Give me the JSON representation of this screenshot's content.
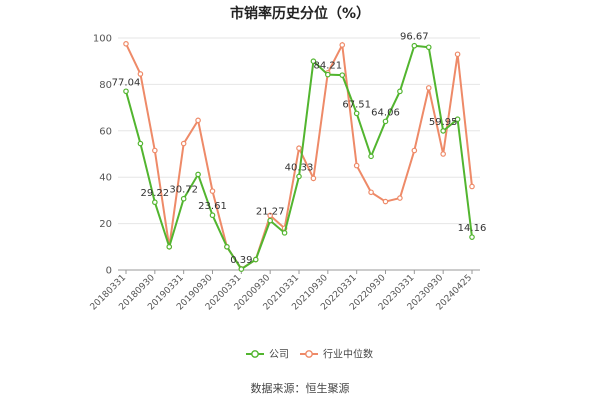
{
  "chart_data": {
    "type": "line",
    "title": "市销率历史分位（%）",
    "ylim": [
      0,
      100
    ],
    "yticks": [
      0,
      20,
      40,
      60,
      80,
      100
    ],
    "x_tick_labels": [
      "20180331",
      "20180930",
      "20190331",
      "20190930",
      "20200331",
      "20200930",
      "20210331",
      "20210930",
      "20220331",
      "20220930",
      "20230331",
      "20230930",
      "20240425"
    ],
    "grid": true,
    "legend_position": "bottom",
    "series": [
      {
        "name": "公司",
        "color": "#52b52f",
        "values": [
          77.04,
          54.5,
          29.22,
          10.0,
          30.72,
          41.2,
          23.61,
          10.0,
          0.39,
          4.5,
          21.27,
          16.0,
          40.33,
          90.0,
          84.21,
          84.0,
          67.51,
          49.0,
          64.06,
          77.0,
          96.67,
          96.0,
          59.95,
          65.0,
          14.16
        ],
        "labels": [
          "77.04",
          "",
          "29.22",
          "",
          "30.72",
          "",
          "23.61",
          "",
          "0.39",
          "",
          "21.27",
          "",
          "40.33",
          "",
          "84.21",
          "",
          "67.51",
          "",
          "64.06",
          "",
          "96.67",
          "",
          "59.95",
          "",
          "14.16"
        ]
      },
      {
        "name": "行业中位数",
        "color": "#ee8a68",
        "values": [
          97.5,
          84.5,
          51.5,
          10.0,
          54.5,
          64.5,
          34.0,
          10.0,
          0.5,
          4.5,
          23.5,
          18.0,
          52.5,
          39.5,
          85.0,
          97.0,
          45.0,
          33.5,
          29.5,
          31.0,
          51.5,
          78.5,
          50.0,
          93.0,
          36.0
        ],
        "labels": []
      }
    ]
  },
  "source_text": "数据来源：恒生聚源"
}
